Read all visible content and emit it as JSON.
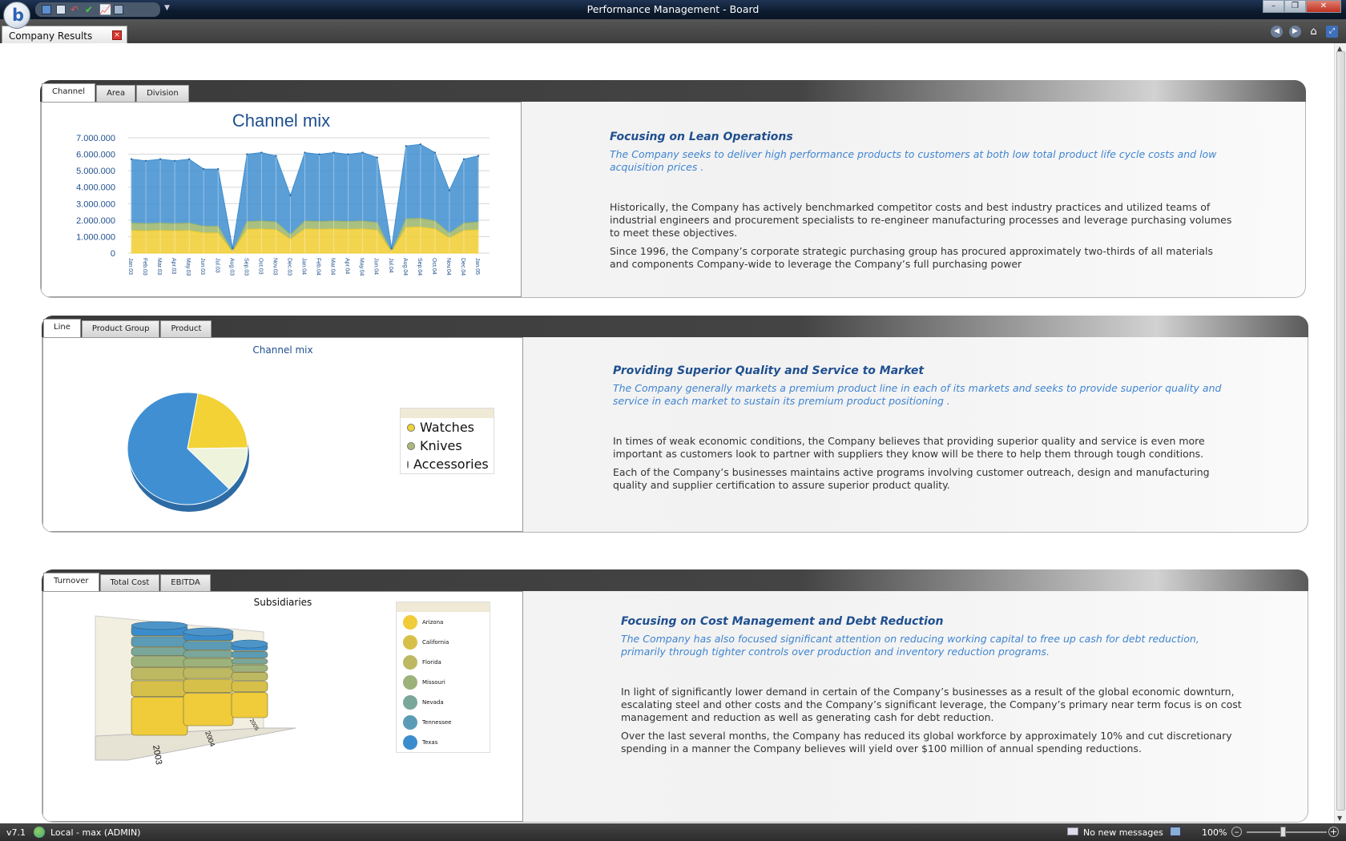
{
  "window": {
    "title": "Performance Management - Board",
    "logo": "b"
  },
  "doc_tab": {
    "label": "Company Results"
  },
  "panels": [
    {
      "tabs": [
        "Channel",
        "Area",
        "Division"
      ],
      "heading": "Focusing on Lean Operations",
      "subheading": "The Company seeks to deliver high performance products to customers at both low total product life cycle costs and low acquisition prices .",
      "paragraphs": [
        "Historically, the Company has actively benchmarked competitor costs and best industry practices and utilized teams of industrial engineers and procurement specialists to re-engineer manufacturing processes and leverage purchasing volumes to meet these objectives.",
        "Since 1996, the Company’s corporate strategic purchasing group has procured approximately two-thirds of all materials and components Company-wide to leverage the Company’s full purchasing power"
      ]
    },
    {
      "tabs": [
        "Line",
        "Product Group",
        "Product"
      ],
      "heading": "Providing Superior Quality and Service to Market",
      "subheading": "The Company generally markets a premium product line in each of its markets and seeks to provide superior quality and service in each market to sustain its premium product positioning .",
      "paragraphs": [
        "In times of weak economic conditions, the Company believes that providing superior quality and service is even more important as customers look to partner with suppliers they know will be there to help them through tough conditions.",
        "Each of the Company’s businesses maintains active programs involving customer outreach, design and manufacturing quality and supplier certification to assure superior product quality."
      ]
    },
    {
      "tabs": [
        "Turnover",
        "Total Cost",
        "EBITDA"
      ],
      "heading": "Focusing on Cost Management and Debt Reduction",
      "subheading": "The Company has also focused significant attention on reducing working capital to free up cash for debt reduction, primarily through tighter controls over production and inventory reduction programs.",
      "paragraphs": [
        "In light of significantly lower demand in certain of the Company’s businesses as a result of the global economic downturn, escalating steel and other costs and the Company’s significant leverage, the Company’s primary near term focus is on cost management and reduction as well as generating cash for debt reduction.",
        "Over the last several months, the Company has reduced its global workforce by approximately 10% and cut discretionary spending in a manner the Company believes will yield over $100 million of annual spending reductions."
      ]
    }
  ],
  "status": {
    "version": "v7.1",
    "connection": "Local - max (ADMIN)",
    "messages": "No new messages",
    "zoom": "100%"
  },
  "chart_data": [
    {
      "type": "area",
      "title": "Channel mix",
      "categories": [
        "Jan.03",
        "Feb.03",
        "Mar.03",
        "Apr.03",
        "May.03",
        "Jun.03",
        "Jul.03",
        "Aug.03",
        "Sep.03",
        "Oct.03",
        "Nov.03",
        "Dec.03",
        "Jan.04",
        "Feb.04",
        "Mar.04",
        "Apr.04",
        "May.04",
        "Jun.04",
        "Jul.04",
        "Aug.04",
        "Sep.04",
        "Oct.04",
        "Nov.04",
        "Dec.04",
        "Jan.05"
      ],
      "yticks": [
        "0",
        "1.000.000",
        "2.000.000",
        "3.000.000",
        "4.000.000",
        "5.000.000",
        "6.000.000",
        "7.000.000"
      ],
      "ylim": [
        0,
        7000000
      ],
      "totals": [
        5700000,
        5600000,
        5700000,
        5600000,
        5700000,
        5100000,
        5100000,
        300000,
        6000000,
        6100000,
        5900000,
        3500000,
        6100000,
        6000000,
        6100000,
        6000000,
        6100000,
        5800000,
        300000,
        6500000,
        6600000,
        6100000,
        3800000,
        5700000,
        5900000
      ],
      "series_colors": [
        "#f0cc30",
        "#9bb56a",
        "#3f8ed0"
      ],
      "share": [
        0.24,
        0.08,
        0.68
      ]
    },
    {
      "type": "pie",
      "title": "Channel mix",
      "series": [
        {
          "name": "Watches",
          "value": 22,
          "color": "#f2d234"
        },
        {
          "name": "Knives",
          "value": 13,
          "color": "#a9b978"
        },
        {
          "name": "Accessories",
          "value": 65,
          "color": "#3f8fd2"
        }
      ]
    },
    {
      "type": "bar",
      "title": "Subsidiaries",
      "categories": [
        "2003",
        "2004",
        "2005"
      ],
      "legend": [
        {
          "name": "Arizona",
          "color": "#f0cb3a"
        },
        {
          "name": "California",
          "color": "#d7c04a"
        },
        {
          "name": "Florida",
          "color": "#bdb963"
        },
        {
          "name": "Missouri",
          "color": "#9db27b"
        },
        {
          "name": "Nevada",
          "color": "#7aa79a"
        },
        {
          "name": "Tennessee",
          "color": "#5c9bb5"
        },
        {
          "name": "Texas",
          "color": "#3b8ccc"
        }
      ]
    }
  ]
}
